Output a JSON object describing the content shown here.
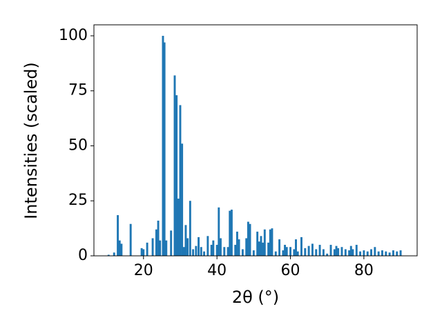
{
  "chart_data": {
    "type": "bar",
    "x_label": "2θ (°)",
    "y_label": "Intensities (scaled)",
    "x": [
      10.5,
      12,
      13,
      13.5,
      14,
      16.5,
      19.5,
      20,
      21,
      22.5,
      23.5,
      24,
      24.5,
      25.3,
      25.7,
      26.2,
      27.5,
      28.5,
      29,
      29.5,
      30,
      30.5,
      31,
      31.5,
      32,
      32.7,
      33.5,
      34.3,
      35,
      35.7,
      36.5,
      37.5,
      38.5,
      39,
      40,
      40.5,
      41,
      42,
      43,
      43.5,
      44,
      45,
      45.5,
      46,
      47,
      48,
      48.5,
      49,
      50,
      51,
      51.5,
      52,
      52.5,
      53,
      54,
      54.5,
      55,
      56,
      57,
      58,
      58.5,
      59,
      60,
      61,
      61.5,
      62,
      63,
      64,
      65,
      66,
      67,
      68,
      69,
      70,
      71,
      72,
      72.5,
      73,
      74,
      75,
      76,
      76.5,
      77,
      78,
      79,
      80,
      81,
      82,
      83,
      84,
      85,
      86,
      87,
      88,
      89,
      90
    ],
    "values": [
      0.5,
      1.5,
      18.5,
      7,
      5.5,
      14.5,
      3.5,
      3,
      6,
      8,
      12,
      16,
      7,
      100,
      97,
      7,
      11.5,
      82,
      73,
      26,
      68.5,
      51,
      4,
      14,
      8,
      25,
      3,
      4.5,
      8.5,
      4,
      2,
      9,
      5,
      7,
      5,
      22,
      8,
      4,
      4,
      20.5,
      21,
      5,
      11,
      7.5,
      3,
      8,
      15.5,
      14.5,
      2.5,
      11,
      6.5,
      9,
      6,
      12,
      6,
      12,
      12.5,
      2,
      7.5,
      2.5,
      5,
      4,
      4,
      3,
      7.5,
      2,
      8.5,
      3.5,
      4.5,
      5.5,
      3,
      5,
      3,
      1,
      5,
      3,
      4.5,
      3.5,
      4,
      3,
      2.5,
      4.5,
      3,
      5,
      2,
      2.5,
      2,
      3,
      4,
      2,
      2.5,
      2,
      1.5,
      2.5,
      2,
      2.5
    ],
    "color": "#1f77b4",
    "xlim": [
      6.5,
      94.5
    ],
    "xticks": [
      20,
      40,
      60,
      80
    ],
    "ylim": [
      0,
      105
    ],
    "yticks": [
      0,
      25,
      50,
      75,
      100
    ]
  }
}
